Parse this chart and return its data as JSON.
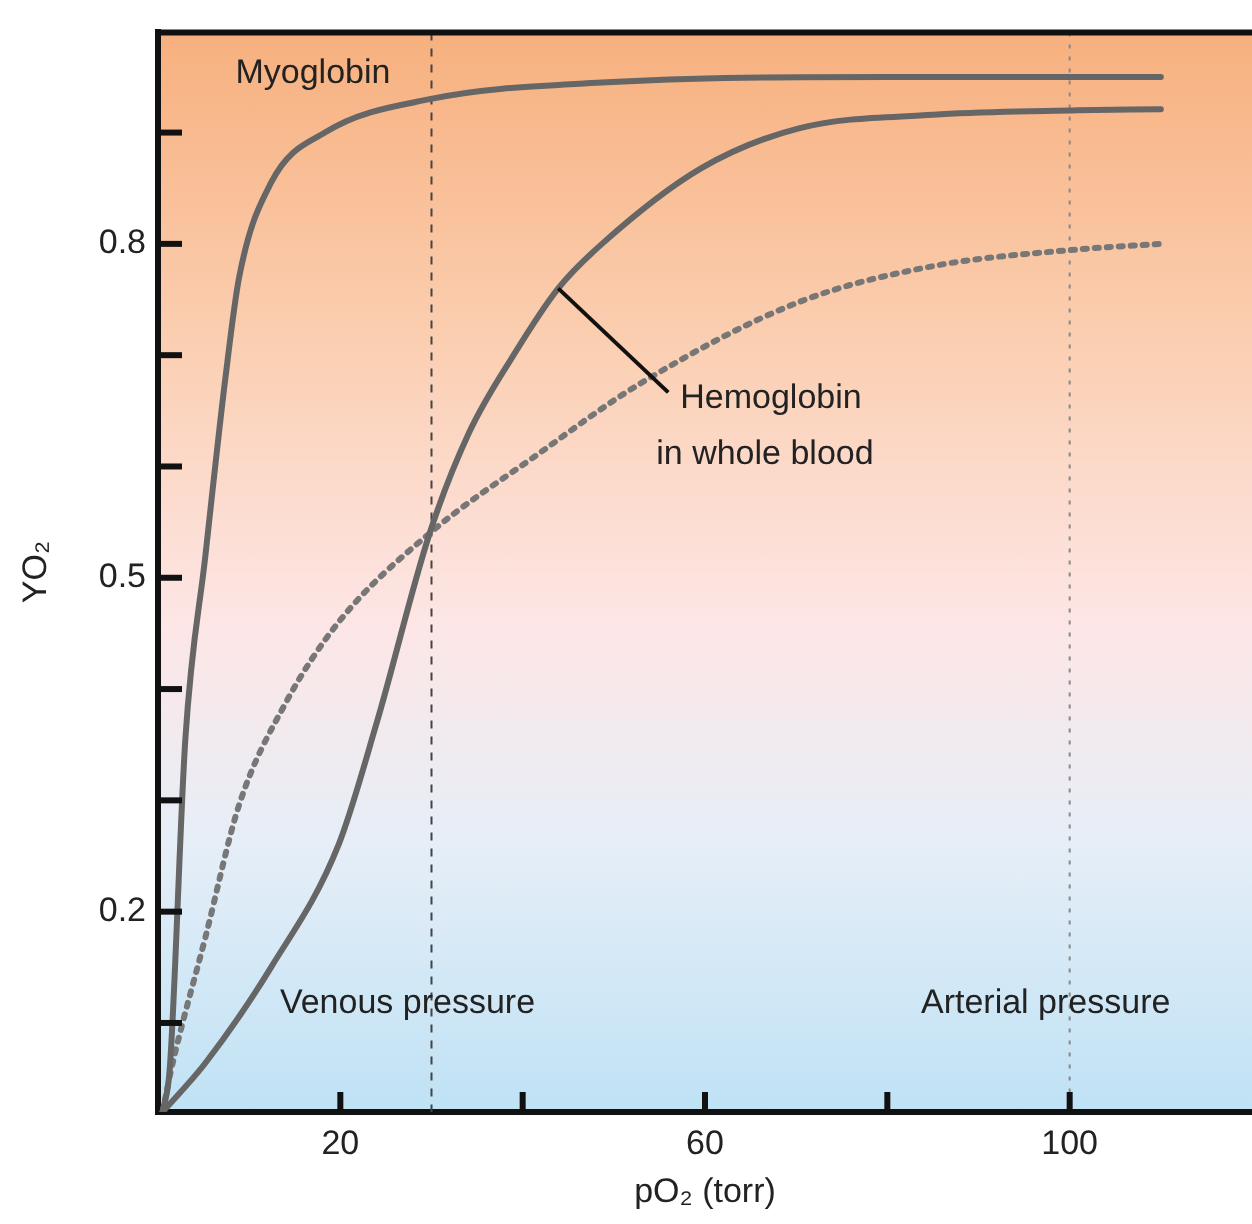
{
  "chart_data": {
    "type": "line",
    "xlabel": "pO₂ (torr)",
    "ylabel": "YO₂",
    "xlim": [
      0,
      120
    ],
    "xticks": [
      {
        "value": 20,
        "label": "20"
      },
      {
        "value": 40,
        "label": null
      },
      {
        "value": 60,
        "label": "60"
      },
      {
        "value": 80,
        "label": null
      },
      {
        "value": 100,
        "label": "100"
      }
    ],
    "ylim": [
      0.02,
      0.99
    ],
    "yticks": [
      {
        "value": 0.1,
        "label": null
      },
      {
        "value": 0.2,
        "label": "0.2"
      },
      {
        "value": 0.3,
        "label": null
      },
      {
        "value": 0.4,
        "label": null
      },
      {
        "value": 0.5,
        "label": "0.5"
      },
      {
        "value": 0.6,
        "label": null
      },
      {
        "value": 0.7,
        "label": null
      },
      {
        "value": 0.8,
        "label": "0.8"
      },
      {
        "value": 0.9,
        "label": null
      }
    ],
    "grid": false,
    "legend": false,
    "marker": "none",
    "series": [
      {
        "color": "#666666",
        "line_style": "solid",
        "x": [
          0.5,
          1.3,
          3,
          5.2,
          7.4,
          8.9,
          12.4,
          18.3,
          29.8,
          48.7,
          80,
          110
        ],
        "values": [
          0.02,
          0.06,
          0.355,
          0.52,
          0.68,
          0.77,
          0.855,
          0.9,
          0.93,
          0.945,
          0.95,
          0.95
        ]
      },
      {
        "color": "#666666",
        "line_style": "solid",
        "x": [
          0.5,
          5.2,
          12.4,
          19.8,
          24,
          29.8,
          34.1,
          39,
          43.9,
          48.7,
          59.6,
          70.4,
          85,
          100.9,
          110
        ],
        "values": [
          0.02,
          0.064,
          0.15,
          0.26,
          0.37,
          0.54,
          0.63,
          0.7,
          0.76,
          0.8,
          0.868,
          0.904,
          0.916,
          0.92,
          0.921
        ]
      },
      {
        "color": "#777777",
        "line_style": "dotted",
        "x": [
          0.5,
          1.5,
          5.2,
          8.9,
          13.9,
          19.8,
          29.8,
          41.5,
          53,
          70.4,
          85,
          100.9,
          110
        ],
        "values": [
          0.02,
          0.06,
          0.177,
          0.296,
          0.386,
          0.46,
          0.54,
          0.61,
          0.675,
          0.748,
          0.78,
          0.795,
          0.8
        ]
      }
    ],
    "annotations": [
      {
        "text": "Myoglobin",
        "x": 17,
        "y": 0.89
      },
      {
        "text": "Hemoglobin in whole blood",
        "x": 43.9,
        "y": 0.76
      }
    ],
    "ref_lines": [
      {
        "axis": "x",
        "value": 30,
        "label": "Venous pressure",
        "color": "#444444",
        "line_style": "dashed"
      },
      {
        "axis": "x",
        "value": 100,
        "label": "Arterial pressure",
        "color": "#888888",
        "line_style": "dotted"
      }
    ]
  }
}
